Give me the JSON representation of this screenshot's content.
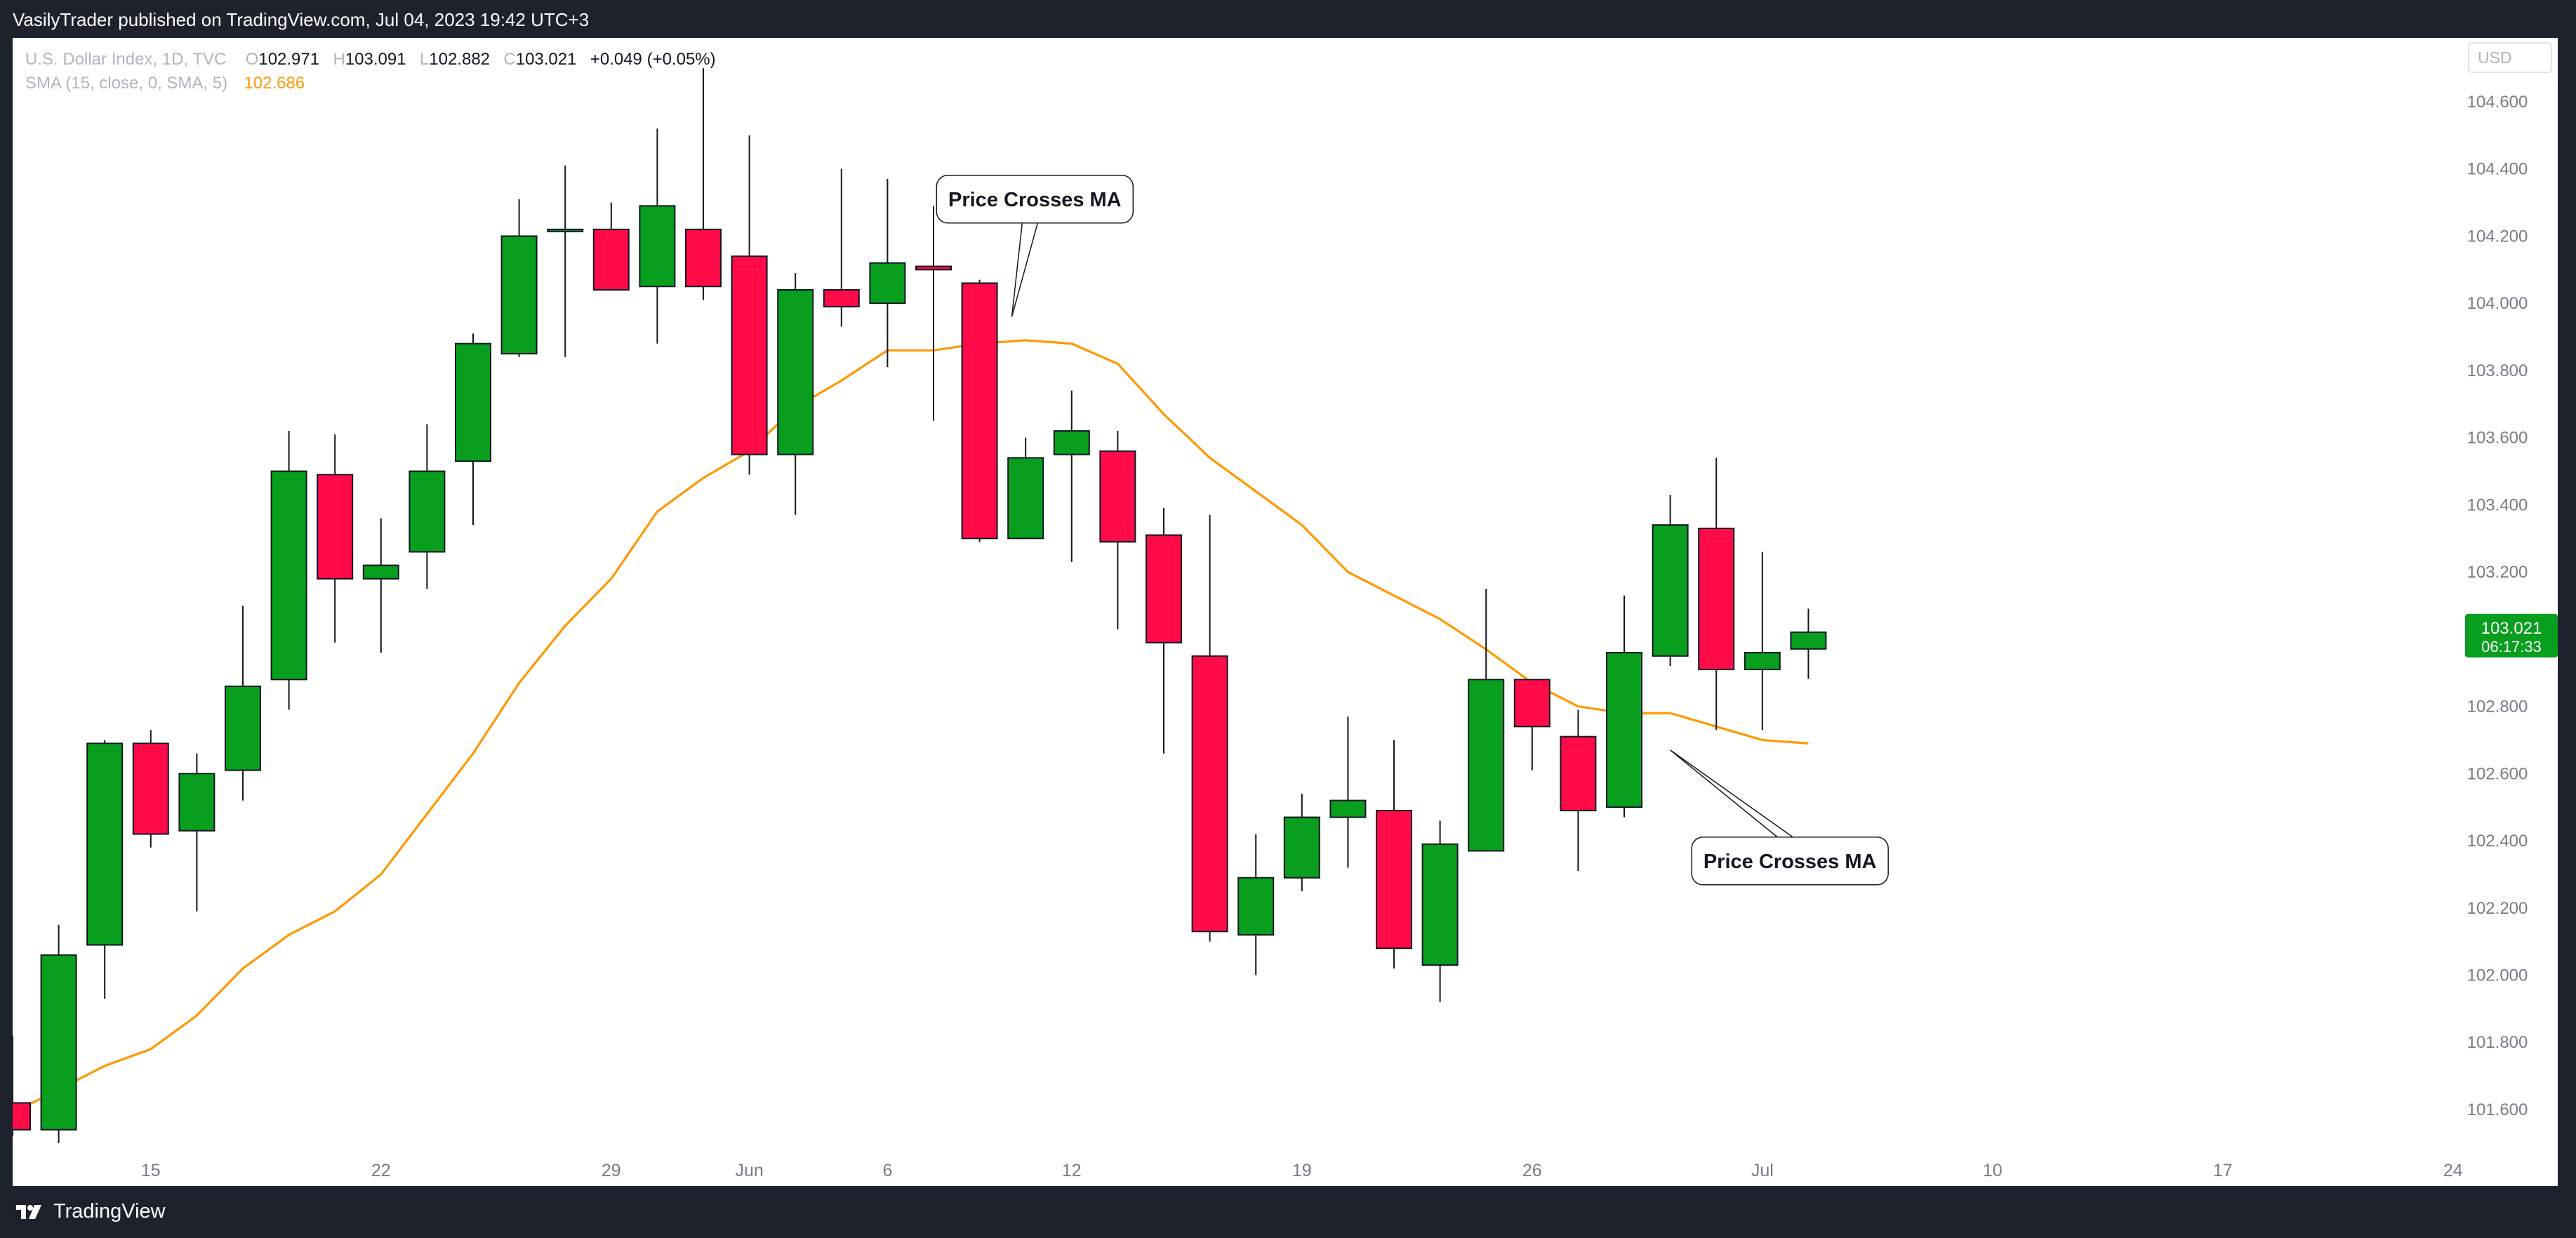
{
  "header": {
    "published_text": "VasilyTrader published on TradingView.com, Jul 04, 2023 19:42 UTC+3"
  },
  "legend": {
    "symbol": "U.S. Dollar Index, 1D, TVC",
    "o_label": "O",
    "o_value": "102.971",
    "h_label": "H",
    "h_value": "103.091",
    "l_label": "L",
    "l_value": "102.882",
    "c_label": "C",
    "c_value": "103.021",
    "change": "+0.049 (+0.05%)",
    "sma_label": "SMA (15, close, 0, SMA, 5)",
    "sma_value": "102.686"
  },
  "currency_label": "USD",
  "footer": {
    "brand": "TradingView"
  },
  "colors": {
    "up": "#089e1e",
    "down": "#ff0b48",
    "sma": "#ff9800",
    "axis_text": "#787b86",
    "price_tag": "#089e1e"
  },
  "chart_data": {
    "type": "candlestick",
    "title": "U.S. Dollar Index, 1D, TVC",
    "y_ticks": [
      "101.600",
      "101.800",
      "102.000",
      "102.200",
      "102.400",
      "102.600",
      "102.800",
      "103.000",
      "103.200",
      "103.400",
      "103.600",
      "103.800",
      "104.000",
      "104.200",
      "104.400",
      "104.600"
    ],
    "ylim": [
      101.46,
      104.79
    ],
    "x_ticks": [
      {
        "label": "15",
        "index": 3
      },
      {
        "label": "22",
        "index": 8
      },
      {
        "label": "29",
        "index": 13
      },
      {
        "label": "Jun",
        "index": 16
      },
      {
        "label": "6",
        "index": 19
      },
      {
        "label": "12",
        "index": 23
      },
      {
        "label": "19",
        "index": 28
      },
      {
        "label": "26",
        "index": 33
      },
      {
        "label": "Jul",
        "index": 38
      },
      {
        "label": "10",
        "index": 43
      },
      {
        "label": "17",
        "index": 48
      },
      {
        "label": "24",
        "index": 53
      }
    ],
    "candles": [
      {
        "date": "May 10",
        "o": 101.62,
        "h": 101.82,
        "l": 101.52,
        "c": 101.54
      },
      {
        "date": "May 11",
        "o": 101.54,
        "h": 102.15,
        "l": 101.5,
        "c": 102.06
      },
      {
        "date": "May 12",
        "o": 102.09,
        "h": 102.7,
        "l": 101.93,
        "c": 102.69
      },
      {
        "date": "May 15",
        "o": 102.69,
        "h": 102.73,
        "l": 102.38,
        "c": 102.42
      },
      {
        "date": "May 16",
        "o": 102.43,
        "h": 102.66,
        "l": 102.19,
        "c": 102.6
      },
      {
        "date": "May 17",
        "o": 102.61,
        "h": 103.1,
        "l": 102.52,
        "c": 102.86
      },
      {
        "date": "May 18",
        "o": 102.88,
        "h": 103.62,
        "l": 102.79,
        "c": 103.5
      },
      {
        "date": "May 19",
        "o": 103.49,
        "h": 103.61,
        "l": 102.99,
        "c": 103.18
      },
      {
        "date": "May 22",
        "o": 103.18,
        "h": 103.36,
        "l": 102.96,
        "c": 103.22
      },
      {
        "date": "May 23",
        "o": 103.26,
        "h": 103.64,
        "l": 103.15,
        "c": 103.5
      },
      {
        "date": "May 24",
        "o": 103.53,
        "h": 103.91,
        "l": 103.34,
        "c": 103.88
      },
      {
        "date": "May 25",
        "o": 103.85,
        "h": 104.31,
        "l": 103.84,
        "c": 104.2
      },
      {
        "date": "May 26",
        "o": 104.22,
        "h": 104.41,
        "l": 103.84,
        "c": 104.22
      },
      {
        "date": "May 29",
        "o": 104.22,
        "h": 104.3,
        "l": 104.04,
        "c": 104.04
      },
      {
        "date": "May 30",
        "o": 104.05,
        "h": 104.52,
        "l": 103.88,
        "c": 104.29
      },
      {
        "date": "May 31",
        "o": 104.22,
        "h": 104.7,
        "l": 104.01,
        "c": 104.05
      },
      {
        "date": "Jun 1",
        "o": 104.14,
        "h": 104.5,
        "l": 103.49,
        "c": 103.55
      },
      {
        "date": "Jun 2",
        "o": 103.55,
        "h": 104.09,
        "l": 103.37,
        "c": 104.04
      },
      {
        "date": "Jun 5",
        "o": 104.04,
        "h": 104.4,
        "l": 103.93,
        "c": 103.99
      },
      {
        "date": "Jun 6",
        "o": 104.0,
        "h": 104.37,
        "l": 103.81,
        "c": 104.12
      },
      {
        "date": "Jun 7",
        "o": 104.11,
        "h": 104.29,
        "l": 103.65,
        "c": 104.1
      },
      {
        "date": "Jun 8",
        "o": 104.06,
        "h": 104.07,
        "l": 103.29,
        "c": 103.3
      },
      {
        "date": "Jun 9",
        "o": 103.3,
        "h": 103.6,
        "l": 103.3,
        "c": 103.54
      },
      {
        "date": "Jun 12",
        "o": 103.55,
        "h": 103.74,
        "l": 103.23,
        "c": 103.62
      },
      {
        "date": "Jun 13",
        "o": 103.56,
        "h": 103.62,
        "l": 103.03,
        "c": 103.29
      },
      {
        "date": "Jun 14",
        "o": 103.31,
        "h": 103.39,
        "l": 102.66,
        "c": 102.99
      },
      {
        "date": "Jun 15",
        "o": 102.95,
        "h": 103.37,
        "l": 102.1,
        "c": 102.13
      },
      {
        "date": "Jun 16",
        "o": 102.12,
        "h": 102.42,
        "l": 102.0,
        "c": 102.29
      },
      {
        "date": "Jun 19",
        "o": 102.29,
        "h": 102.54,
        "l": 102.25,
        "c": 102.47
      },
      {
        "date": "Jun 20",
        "o": 102.47,
        "h": 102.77,
        "l": 102.32,
        "c": 102.52
      },
      {
        "date": "Jun 21",
        "o": 102.49,
        "h": 102.7,
        "l": 102.02,
        "c": 102.08
      },
      {
        "date": "Jun 22",
        "o": 102.03,
        "h": 102.46,
        "l": 101.92,
        "c": 102.39
      },
      {
        "date": "Jun 23",
        "o": 102.37,
        "h": 103.15,
        "l": 102.37,
        "c": 102.88
      },
      {
        "date": "Jun 26",
        "o": 102.88,
        "h": 102.88,
        "l": 102.61,
        "c": 102.74
      },
      {
        "date": "Jun 27",
        "o": 102.71,
        "h": 102.79,
        "l": 102.31,
        "c": 102.49
      },
      {
        "date": "Jun 28",
        "o": 102.5,
        "h": 103.13,
        "l": 102.47,
        "c": 102.96
      },
      {
        "date": "Jun 29",
        "o": 102.95,
        "h": 103.43,
        "l": 102.92,
        "c": 103.34
      },
      {
        "date": "Jun 30",
        "o": 103.33,
        "h": 103.54,
        "l": 102.73,
        "c": 102.91
      },
      {
        "date": "Jul 3",
        "o": 102.91,
        "h": 103.26,
        "l": 102.73,
        "c": 102.96
      },
      {
        "date": "Jul 4",
        "o": 102.971,
        "h": 103.091,
        "l": 102.882,
        "c": 103.021
      }
    ],
    "sma": {
      "name": "SMA (15, close, 0, SMA, 5)",
      "values": [
        101.59,
        101.66,
        101.73,
        101.78,
        101.88,
        102.02,
        102.12,
        102.19,
        102.3,
        102.48,
        102.66,
        102.87,
        103.04,
        103.18,
        103.38,
        103.48,
        103.56,
        103.69,
        103.77,
        103.86,
        103.86,
        103.88,
        103.89,
        103.88,
        103.82,
        103.67,
        103.54,
        103.44,
        103.34,
        103.2,
        103.13,
        103.06,
        102.97,
        102.87,
        102.8,
        102.78,
        102.78,
        102.74,
        102.7,
        102.69
      ]
    },
    "annotations": [
      {
        "text": "Price Crosses MA",
        "box_x_index": 22.2,
        "box_y": 104.31,
        "pointer_x_index": 21.7,
        "pointer_y": 103.96
      },
      {
        "text": "Price Crosses MA",
        "box_x_index": 38.6,
        "box_y": 102.34,
        "pointer_x_index": 36.0,
        "pointer_y": 102.67
      }
    ],
    "last_price": {
      "value": "103.021",
      "countdown": "06:17:33"
    }
  }
}
